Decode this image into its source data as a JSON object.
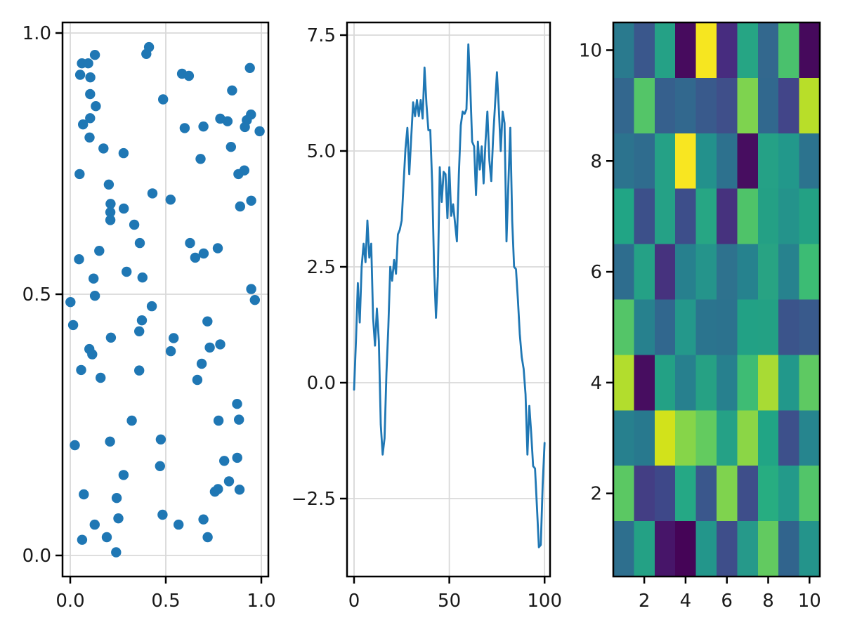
{
  "figure": {
    "background": "#ffffff"
  },
  "style": {
    "accent": "#1f77b4",
    "grid_color": "#d9d9d9",
    "spine_color": "#000000",
    "tick_label_color": "#1a1a1a",
    "tick_font_px": 26
  },
  "chart_data": [
    {
      "type": "scatter",
      "panel": "left",
      "title": "",
      "xlabel": "",
      "ylabel": "",
      "grid": true,
      "marker_color": "#1f77b4",
      "marker_radius": 7.2,
      "xlim": [
        -0.04,
        1.04
      ],
      "ylim": [
        -0.04,
        1.02
      ],
      "xticks": {
        "values": [
          0.0,
          0.5,
          1.0
        ],
        "labels": [
          "0.0",
          "0.5",
          "1.0"
        ]
      },
      "yticks": {
        "values": [
          0.0,
          0.5,
          1.0
        ],
        "labels": [
          "0.0",
          "0.5",
          "1.0"
        ]
      },
      "points": [
        [
          0.129,
          0.958
        ],
        [
          0.412,
          0.973
        ],
        [
          0.398,
          0.96
        ],
        [
          0.061,
          0.942
        ],
        [
          0.094,
          0.942
        ],
        [
          0.052,
          0.92
        ],
        [
          0.105,
          0.915
        ],
        [
          0.94,
          0.933
        ],
        [
          0.585,
          0.922
        ],
        [
          0.621,
          0.918
        ],
        [
          0.847,
          0.89
        ],
        [
          0.486,
          0.873
        ],
        [
          0.104,
          0.883
        ],
        [
          0.134,
          0.86
        ],
        [
          0.104,
          0.837
        ],
        [
          0.067,
          0.825
        ],
        [
          0.946,
          0.844
        ],
        [
          0.924,
          0.833
        ],
        [
          0.914,
          0.82
        ],
        [
          0.785,
          0.836
        ],
        [
          0.823,
          0.831
        ],
        [
          0.599,
          0.818
        ],
        [
          0.697,
          0.821
        ],
        [
          0.991,
          0.812
        ],
        [
          0.101,
          0.8
        ],
        [
          0.841,
          0.782
        ],
        [
          0.174,
          0.779
        ],
        [
          0.279,
          0.77
        ],
        [
          0.682,
          0.759
        ],
        [
          0.049,
          0.73
        ],
        [
          0.88,
          0.73
        ],
        [
          0.911,
          0.737
        ],
        [
          0.202,
          0.71
        ],
        [
          0.43,
          0.693
        ],
        [
          0.525,
          0.681
        ],
        [
          0.211,
          0.673
        ],
        [
          0.21,
          0.657
        ],
        [
          0.21,
          0.642
        ],
        [
          0.28,
          0.664
        ],
        [
          0.889,
          0.668
        ],
        [
          0.947,
          0.679
        ],
        [
          0.335,
          0.633
        ],
        [
          0.364,
          0.598
        ],
        [
          0.627,
          0.598
        ],
        [
          0.654,
          0.57
        ],
        [
          0.698,
          0.578
        ],
        [
          0.772,
          0.588
        ],
        [
          0.152,
          0.583
        ],
        [
          0.046,
          0.567
        ],
        [
          0.295,
          0.543
        ],
        [
          0.378,
          0.532
        ],
        [
          0.122,
          0.53
        ],
        [
          0.129,
          0.497
        ],
        [
          0.001,
          0.485
        ],
        [
          0.947,
          0.51
        ],
        [
          0.966,
          0.489
        ],
        [
          0.427,
          0.477
        ],
        [
          0.375,
          0.45
        ],
        [
          0.718,
          0.448
        ],
        [
          0.015,
          0.441
        ],
        [
          0.361,
          0.429
        ],
        [
          0.213,
          0.417
        ],
        [
          0.541,
          0.416
        ],
        [
          0.73,
          0.398
        ],
        [
          0.785,
          0.404
        ],
        [
          0.1,
          0.395
        ],
        [
          0.115,
          0.385
        ],
        [
          0.526,
          0.391
        ],
        [
          0.688,
          0.367
        ],
        [
          0.057,
          0.355
        ],
        [
          0.361,
          0.354
        ],
        [
          0.159,
          0.34
        ],
        [
          0.665,
          0.336
        ],
        [
          0.873,
          0.29
        ],
        [
          0.776,
          0.258
        ],
        [
          0.883,
          0.26
        ],
        [
          0.322,
          0.258
        ],
        [
          0.024,
          0.211
        ],
        [
          0.208,
          0.218
        ],
        [
          0.474,
          0.222
        ],
        [
          0.47,
          0.171
        ],
        [
          0.806,
          0.181
        ],
        [
          0.874,
          0.187
        ],
        [
          0.279,
          0.154
        ],
        [
          0.831,
          0.142
        ],
        [
          0.886,
          0.126
        ],
        [
          0.757,
          0.122
        ],
        [
          0.773,
          0.127
        ],
        [
          0.071,
          0.117
        ],
        [
          0.243,
          0.11
        ],
        [
          0.252,
          0.071
        ],
        [
          0.483,
          0.078
        ],
        [
          0.128,
          0.059
        ],
        [
          0.567,
          0.059
        ],
        [
          0.697,
          0.069
        ],
        [
          0.719,
          0.035
        ],
        [
          0.062,
          0.03
        ],
        [
          0.191,
          0.035
        ],
        [
          0.24,
          0.006
        ]
      ]
    },
    {
      "type": "line",
      "panel": "middle",
      "title": "",
      "xlabel": "",
      "ylabel": "",
      "grid": true,
      "line_color": "#1f77b4",
      "line_width": 2.8,
      "xlim": [
        -3.7,
        102.9
      ],
      "ylim": [
        -4.18,
        7.77
      ],
      "xticks": {
        "values": [
          0,
          50,
          100
        ],
        "labels": [
          "0",
          "50",
          "100"
        ]
      },
      "yticks": {
        "values": [
          7.5,
          5.0,
          2.5,
          0.0,
          -2.5
        ],
        "labels": [
          "7.5",
          "5.0",
          "2.5",
          "0.0",
          "−2.5"
        ]
      },
      "x_start": 0,
      "x_step": 1,
      "y": [
        -0.15,
        0.9,
        2.15,
        1.3,
        2.5,
        3.0,
        2.6,
        3.5,
        2.7,
        3.0,
        1.4,
        0.8,
        1.6,
        0.9,
        -0.9,
        -1.55,
        -1.2,
        0.2,
        1.2,
        2.5,
        2.2,
        2.65,
        2.35,
        3.2,
        3.3,
        3.5,
        4.3,
        5.05,
        5.5,
        4.5,
        5.3,
        6.05,
        5.75,
        6.1,
        5.75,
        6.1,
        5.7,
        6.8,
        6.0,
        5.45,
        5.45,
        4.3,
        2.5,
        1.4,
        2.3,
        4.65,
        3.9,
        4.55,
        4.5,
        3.55,
        4.65,
        3.6,
        3.85,
        3.45,
        3.05,
        4.5,
        5.55,
        5.85,
        5.8,
        5.9,
        7.3,
        6.4,
        5.2,
        5.1,
        4.05,
        5.2,
        4.6,
        5.1,
        4.3,
        5.2,
        5.85,
        4.8,
        4.35,
        5.3,
        6.0,
        6.7,
        5.9,
        5.0,
        5.85,
        5.6,
        3.05,
        4.3,
        5.5,
        3.5,
        2.5,
        2.45,
        1.8,
        1.05,
        0.55,
        0.3,
        -0.25,
        -1.55,
        -0.5,
        -1.1,
        -1.8,
        -1.85,
        -2.7,
        -3.55,
        -3.5,
        -2.2,
        -1.3
      ]
    },
    {
      "type": "heatmap",
      "panel": "right",
      "title": "",
      "xlabel": "",
      "ylabel": "",
      "colormap": "viridis",
      "x_range": [
        1,
        10
      ],
      "y_range": [
        1,
        10
      ],
      "rows_order": "top row is y=10, bottom row is y=1",
      "xticks": {
        "values": [
          2,
          4,
          6,
          8,
          10
        ],
        "labels": [
          "2",
          "4",
          "6",
          "8",
          "10"
        ]
      },
      "yticks": {
        "values": [
          10,
          8,
          6,
          4,
          2
        ],
        "labels": [
          "10",
          "8",
          "6",
          "4",
          "2"
        ]
      },
      "cell_colors": [
        [
          "#2a7a8e",
          "#3a578c",
          "#25a186",
          "#470b5e",
          "#f6e620",
          "#472c7f",
          "#26a584",
          "#33688e",
          "#4ac16d",
          "#46095c"
        ],
        [
          "#33678e",
          "#54c568",
          "#36608d",
          "#32688e",
          "#395a8c",
          "#3f4f8a",
          "#7ed34f",
          "#31688e",
          "#424589",
          "#b8de29"
        ],
        [
          "#2c738e",
          "#2f6c8e",
          "#25a186",
          "#f8e621",
          "#23918c",
          "#2d718e",
          "#470d60",
          "#25a186",
          "#22988b",
          "#2c738e"
        ],
        [
          "#21a585",
          "#3c508a",
          "#25a186",
          "#3d4e8a",
          "#27a684",
          "#46327e",
          "#4fc369",
          "#24a085",
          "#24938b",
          "#23a184"
        ],
        [
          "#2e6d8e",
          "#25a186",
          "#46327e",
          "#27808e",
          "#25948b",
          "#2e728e",
          "#26828e",
          "#28a383",
          "#27828e",
          "#3cbc74"
        ],
        [
          "#54c568",
          "#27818e",
          "#31678e",
          "#24988b",
          "#2b748e",
          "#2c728e",
          "#22a185",
          "#23a184",
          "#3b548b",
          "#395a8c"
        ],
        [
          "#b2dd2d",
          "#470d60",
          "#23a185",
          "#27808e",
          "#26a184",
          "#27808e",
          "#3ebc74",
          "#a8db34",
          "#22988b",
          "#5ec962"
        ],
        [
          "#27808e",
          "#28798e",
          "#d2e21b",
          "#86d549",
          "#63cb5f",
          "#25a186",
          "#8bd646",
          "#21a585",
          "#3d508b",
          "#26858e"
        ],
        [
          "#5bc863",
          "#433e84",
          "#3e4889",
          "#25a885",
          "#3a578c",
          "#7fd34e",
          "#3e4e8a",
          "#27ad81",
          "#239a8a",
          "#52c569"
        ],
        [
          "#2e6f8e",
          "#24a185",
          "#471569",
          "#450457",
          "#23968b",
          "#3e4e8a",
          "#26998a",
          "#62ca60",
          "#31648d",
          "#24948b"
        ]
      ]
    }
  ]
}
